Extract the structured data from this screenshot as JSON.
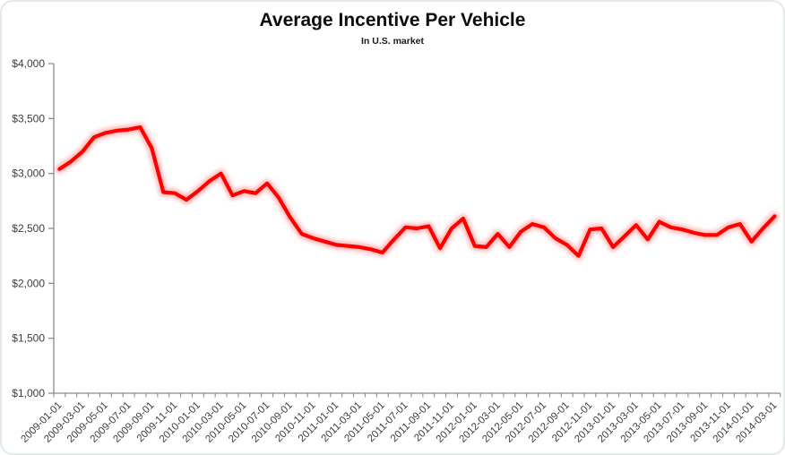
{
  "card": {
    "background": "#ffffff",
    "border_color": "#e2ebe5"
  },
  "chart_data": {
    "type": "line",
    "title": "Average Incentive Per Vehicle",
    "subtitle": "In U.S. market",
    "legend_position": "none",
    "grid": false,
    "line_color": "#fe0000",
    "glow_color": "#ff8080",
    "axis_color": "#8c8c8c",
    "label_color": "#3d3d3d",
    "ylim": [
      1000,
      4000
    ],
    "ytick_step": 500,
    "ytick_labels": [
      "$4,000",
      "$3,500",
      "$3,000",
      "$2,500",
      "$2,000",
      "$1,500",
      "$1,000"
    ],
    "xtick_label_every": 2,
    "x": [
      "2009-01-01",
      "2009-02-01",
      "2009-03-01",
      "2009-04-01",
      "2009-05-01",
      "2009-06-01",
      "2009-07-01",
      "2009-08-01",
      "2009-09-01",
      "2009-10-01",
      "2009-11-01",
      "2009-12-01",
      "2010-01-01",
      "2010-02-01",
      "2010-03-01",
      "2010-04-01",
      "2010-05-01",
      "2010-06-01",
      "2010-07-01",
      "2010-08-01",
      "2010-09-01",
      "2010-10-01",
      "2010-11-01",
      "2010-12-01",
      "2011-01-01",
      "2011-02-01",
      "2011-03-01",
      "2011-04-01",
      "2011-05-01",
      "2011-06-01",
      "2011-07-01",
      "2011-08-01",
      "2011-09-01",
      "2011-10-01",
      "2011-11-01",
      "2011-12-01",
      "2012-01-01",
      "2012-02-01",
      "2012-03-01",
      "2012-04-01",
      "2012-05-01",
      "2012-06-01",
      "2012-07-01",
      "2012-08-01",
      "2012-09-01",
      "2012-10-01",
      "2012-11-01",
      "2012-12-01",
      "2013-01-01",
      "2013-02-01",
      "2013-03-01",
      "2013-04-01",
      "2013-05-01",
      "2013-06-01",
      "2013-07-01",
      "2013-08-01",
      "2013-09-01",
      "2013-10-01",
      "2013-11-01",
      "2013-12-01",
      "2014-01-01",
      "2014-02-01",
      "2014-03-01"
    ],
    "series": [
      {
        "name": "Average Incentive Per Vehicle",
        "values": [
          3040,
          3110,
          3200,
          3330,
          3370,
          3390,
          3400,
          3420,
          3230,
          2830,
          2820,
          2760,
          2840,
          2930,
          3000,
          2800,
          2840,
          2820,
          2910,
          2780,
          2600,
          2450,
          2410,
          2380,
          2350,
          2340,
          2330,
          2310,
          2280,
          2400,
          2510,
          2500,
          2520,
          2320,
          2500,
          2590,
          2340,
          2330,
          2450,
          2330,
          2470,
          2540,
          2510,
          2410,
          2350,
          2250,
          2490,
          2500,
          2330,
          2430,
          2530,
          2400,
          2560,
          2510,
          2490,
          2460,
          2440,
          2440,
          2510,
          2540,
          2380,
          2500,
          2610
        ]
      }
    ]
  }
}
